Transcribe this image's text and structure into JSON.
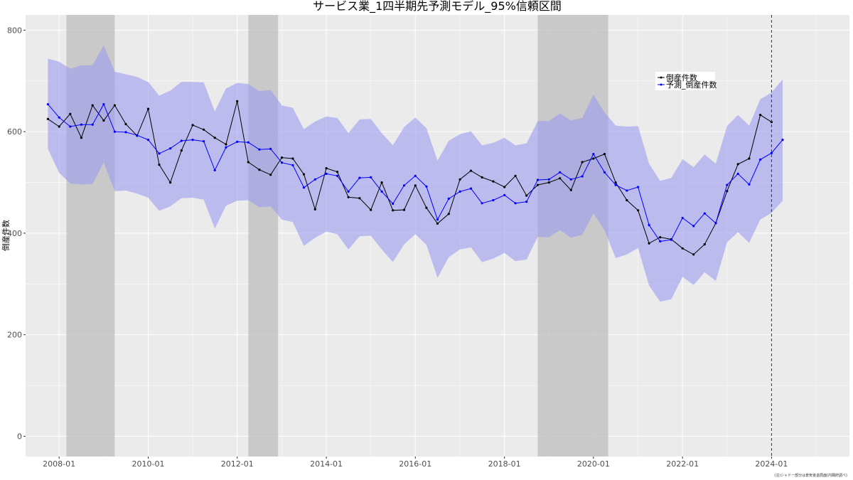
{
  "chart_data": {
    "type": "line",
    "title": "サービス業_1四半期先予測モデル_95%信頼区間",
    "xlabel": "",
    "ylabel": "倒産件数",
    "caption": "(注)シャドー部分は景気後退局面(内閣府調べ)",
    "xlim": [
      "2007-04-01",
      "2025-10-01"
    ],
    "ylim": [
      -40,
      830
    ],
    "y_ticks": [
      0,
      200,
      400,
      600,
      800
    ],
    "x_ticks": [
      "2008-01",
      "2010-01",
      "2012-01",
      "2014-01",
      "2016-01",
      "2018-01",
      "2020-01",
      "2022-01",
      "2024-01"
    ],
    "grid": true,
    "legend_position": "top-right",
    "recessions": [
      [
        "2008-03-01",
        "2009-04-01"
      ],
      [
        "2012-04-01",
        "2012-12-01"
      ],
      [
        "2018-10-01",
        "2020-05-01"
      ]
    ],
    "forecast_line": "2024-01-01",
    "x": [
      "2007-10-01",
      "2008-01-01",
      "2008-04-01",
      "2008-07-01",
      "2008-10-01",
      "2009-01-01",
      "2009-04-01",
      "2009-07-01",
      "2009-10-01",
      "2010-01-01",
      "2010-04-01",
      "2010-07-01",
      "2010-10-01",
      "2011-01-01",
      "2011-04-01",
      "2011-07-01",
      "2011-10-01",
      "2012-01-01",
      "2012-04-01",
      "2012-07-01",
      "2012-10-01",
      "2013-01-01",
      "2013-04-01",
      "2013-07-01",
      "2013-10-01",
      "2014-01-01",
      "2014-04-01",
      "2014-07-01",
      "2014-10-01",
      "2015-01-01",
      "2015-04-01",
      "2015-07-01",
      "2015-10-01",
      "2016-01-01",
      "2016-04-01",
      "2016-07-01",
      "2016-10-01",
      "2017-01-01",
      "2017-04-01",
      "2017-07-01",
      "2017-10-01",
      "2018-01-01",
      "2018-04-01",
      "2018-07-01",
      "2018-10-01",
      "2019-01-01",
      "2019-04-01",
      "2019-07-01",
      "2019-10-01",
      "2020-01-01",
      "2020-04-01",
      "2020-07-01",
      "2020-10-01",
      "2021-01-01",
      "2021-04-01",
      "2021-07-01",
      "2021-10-01",
      "2022-01-01",
      "2022-04-01",
      "2022-07-01",
      "2022-10-01",
      "2023-01-01",
      "2023-04-01",
      "2023-07-01",
      "2023-10-01",
      "2024-01-01",
      "2024-04-01"
    ],
    "series": [
      {
        "name": "倒産件数",
        "color": "#000000",
        "values": [
          625,
          610,
          635,
          588,
          652,
          622,
          652,
          615,
          592,
          645,
          535,
          500,
          563,
          613,
          604,
          588,
          575,
          660,
          540,
          525,
          515,
          549,
          547,
          516,
          447,
          528,
          521,
          471,
          469,
          446,
          500,
          445,
          446,
          494,
          450,
          419,
          438,
          506,
          523,
          510,
          502,
          491,
          513,
          474,
          495,
          500,
          508,
          485,
          540,
          547,
          556,
          500,
          465,
          445,
          380,
          392,
          388,
          370,
          358,
          378,
          420,
          483,
          536,
          547,
          633,
          619,
          null
        ]
      },
      {
        "name": "予測_倒産件数",
        "color": "#0000ff",
        "values": [
          654,
          628,
          610,
          614,
          614,
          654,
          600,
          599,
          593,
          584,
          557,
          567,
          582,
          584,
          581,
          524,
          569,
          580,
          579,
          565,
          566,
          539,
          534,
          490,
          506,
          517,
          513,
          482,
          509,
          510,
          482,
          458,
          494,
          513,
          492,
          427,
          468,
          482,
          488,
          459,
          465,
          475,
          459,
          462,
          505,
          506,
          520,
          506,
          512,
          556,
          520,
          495,
          484,
          491,
          416,
          384,
          387,
          430,
          414,
          439,
          420,
          495,
          517,
          496,
          545,
          558,
          584
        ]
      }
    ],
    "band": {
      "name": "95%信頼区間",
      "color": "#9b9bf0",
      "upper": [
        744,
        738,
        724,
        731,
        731,
        770,
        718,
        713,
        708,
        698,
        671,
        681,
        698,
        698,
        697,
        640,
        685,
        696,
        694,
        680,
        682,
        652,
        647,
        605,
        620,
        630,
        627,
        597,
        624,
        625,
        597,
        573,
        609,
        628,
        607,
        543,
        582,
        595,
        601,
        573,
        578,
        588,
        573,
        577,
        621,
        621,
        636,
        622,
        627,
        673,
        638,
        612,
        610,
        611,
        537,
        503,
        509,
        546,
        530,
        555,
        537,
        611,
        633,
        612,
        664,
        677,
        703
      ],
      "lower": [
        566,
        519,
        498,
        496,
        497,
        539,
        483,
        484,
        478,
        470,
        444,
        453,
        469,
        470,
        466,
        409,
        454,
        464,
        465,
        451,
        453,
        427,
        422,
        375,
        391,
        403,
        398,
        368,
        394,
        395,
        368,
        343,
        378,
        398,
        377,
        312,
        353,
        368,
        372,
        343,
        350,
        361,
        345,
        348,
        393,
        392,
        406,
        391,
        397,
        439,
        406,
        351,
        358,
        371,
        297,
        265,
        270,
        314,
        298,
        323,
        306,
        382,
        402,
        381,
        427,
        440,
        464
      ]
    }
  }
}
